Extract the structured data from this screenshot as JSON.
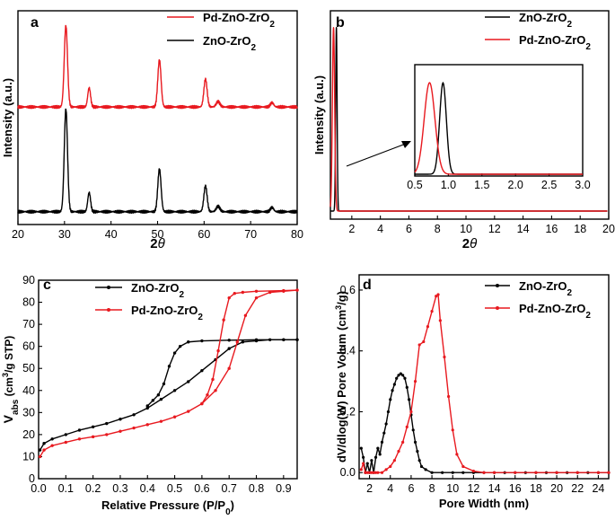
{
  "figure": {
    "title": ""
  },
  "colors": {
    "black": "#000000",
    "red": "#e8191f"
  },
  "chart_data": [
    {
      "id": "a",
      "panel_label": "a",
      "type": "line",
      "title": "",
      "xlabel": "2",
      "xlabel_italic": "θ",
      "ylabel": "Intensity (a.u.)",
      "xlim": [
        20,
        80
      ],
      "xticks": [
        "20",
        "30",
        "40",
        "50",
        "60",
        "70",
        "80"
      ],
      "yticks": [],
      "legend_position": "top-right",
      "series": [
        {
          "name": "Pd-ZnO-ZrO",
          "name_sub": "2",
          "color": "#e8191f",
          "offset": 0.54,
          "baseline": 0.01,
          "peaks": [
            [
              30.3,
              0.38,
              0.35
            ],
            [
              35.3,
              0.09,
              0.3
            ],
            [
              50.4,
              0.22,
              0.35
            ],
            [
              60.3,
              0.13,
              0.35
            ],
            [
              63.0,
              0.025,
              0.4
            ],
            [
              74.6,
              0.02,
              0.35
            ]
          ]
        },
        {
          "name": "ZnO-ZrO",
          "name_sub": "2",
          "color": "#000000",
          "offset": 0.05,
          "baseline": 0.01,
          "peaks": [
            [
              30.3,
              0.48,
              0.35
            ],
            [
              35.3,
              0.09,
              0.3
            ],
            [
              50.4,
              0.2,
              0.35
            ],
            [
              60.3,
              0.12,
              0.35
            ],
            [
              63.0,
              0.025,
              0.4
            ],
            [
              74.6,
              0.02,
              0.35
            ]
          ]
        }
      ]
    },
    {
      "id": "b",
      "panel_label": "b",
      "type": "line",
      "title": "",
      "xlabel": "2",
      "xlabel_italic": "θ",
      "ylabel": "Intensity (a.u.)",
      "xlim": [
        0.5,
        20
      ],
      "xticks": [
        "2",
        "4",
        "6",
        "8",
        "10",
        "12",
        "14",
        "16",
        "18",
        "20"
      ],
      "yticks": [],
      "legend_position": "top-right",
      "series": [
        {
          "name": "ZnO-ZrO",
          "name_sub": "2",
          "color": "#000000",
          "peak_center": 0.92,
          "peak_width": 0.05,
          "peak_height": 0.95
        },
        {
          "name": "Pd-ZnO-ZrO",
          "name_sub": "2",
          "color": "#e8191f",
          "peak_center": 0.72,
          "peak_width": 0.08,
          "peak_height": 0.95
        }
      ],
      "inset": {
        "xlim": [
          0.5,
          3.0
        ],
        "xticks": [
          "0.5",
          "1.0",
          "1.5",
          "2.0",
          "2.5",
          "3.0"
        ],
        "series": [
          {
            "color": "#000000",
            "peak_center": 0.92,
            "peak_width": 0.05,
            "peak_height": 0.75
          },
          {
            "color": "#e8191f",
            "peak_center": 0.72,
            "peak_width": 0.08,
            "peak_height": 0.75
          }
        ]
      }
    },
    {
      "id": "c",
      "panel_label": "c",
      "type": "line",
      "title": "",
      "xlabel": "Relative Pressure (P/P",
      "xlabel_sub": "0",
      "xlabel_end": ")",
      "ylabel": "V",
      "ylabel_sub": "abs",
      "ylabel_unit": " (cm",
      "ylabel_sup": "3",
      "ylabel_end": "/g STP)",
      "xlim": [
        0,
        0.95
      ],
      "ylim": [
        0,
        90
      ],
      "xticks": [
        "0.0",
        "0.1",
        "0.2",
        "0.3",
        "0.4",
        "0.5",
        "0.6",
        "0.7",
        "0.8",
        "0.9"
      ],
      "yticks": [
        "0",
        "10",
        "20",
        "30",
        "40",
        "50",
        "60",
        "70",
        "80",
        "90"
      ],
      "legend_position": "top-center",
      "series": [
        {
          "name": "ZnO-ZrO",
          "name_sub": "2",
          "color": "#000000",
          "adsorption": [
            [
              0.005,
              13
            ],
            [
              0.02,
              16
            ],
            [
              0.05,
              18
            ],
            [
              0.1,
              20
            ],
            [
              0.15,
              22
            ],
            [
              0.2,
              23.5
            ],
            [
              0.25,
              25
            ],
            [
              0.3,
              27
            ],
            [
              0.35,
              29
            ],
            [
              0.4,
              32
            ],
            [
              0.45,
              36
            ],
            [
              0.5,
              40
            ],
            [
              0.55,
              44
            ],
            [
              0.6,
              49
            ],
            [
              0.65,
              54
            ],
            [
              0.7,
              59
            ],
            [
              0.75,
              62
            ],
            [
              0.8,
              62.5
            ],
            [
              0.85,
              63
            ],
            [
              0.9,
              63
            ],
            [
              0.95,
              63
            ]
          ],
          "desorption": [
            [
              0.95,
              63
            ],
            [
              0.9,
              63
            ],
            [
              0.8,
              63
            ],
            [
              0.7,
              62.8
            ],
            [
              0.6,
              62.5
            ],
            [
              0.55,
              62
            ],
            [
              0.52,
              60
            ],
            [
              0.5,
              57
            ],
            [
              0.48,
              51
            ],
            [
              0.46,
              43
            ],
            [
              0.44,
              38
            ],
            [
              0.42,
              35.5
            ],
            [
              0.4,
              33
            ]
          ]
        },
        {
          "name": "Pd-ZnO-ZrO",
          "name_sub": "2",
          "color": "#e8191f",
          "adsorption": [
            [
              0.005,
              10
            ],
            [
              0.02,
              13
            ],
            [
              0.05,
              15
            ],
            [
              0.1,
              16.5
            ],
            [
              0.15,
              18
            ],
            [
              0.2,
              19
            ],
            [
              0.25,
              20
            ],
            [
              0.3,
              21.5
            ],
            [
              0.35,
              23
            ],
            [
              0.4,
              24.5
            ],
            [
              0.45,
              26
            ],
            [
              0.5,
              28
            ],
            [
              0.55,
              30.5
            ],
            [
              0.6,
              34
            ],
            [
              0.65,
              40
            ],
            [
              0.7,
              50
            ],
            [
              0.73,
              62
            ],
            [
              0.76,
              74
            ],
            [
              0.8,
              82
            ],
            [
              0.85,
              84.5
            ],
            [
              0.9,
              85
            ],
            [
              0.95,
              85.5
            ]
          ],
          "desorption": [
            [
              0.95,
              85.5
            ],
            [
              0.9,
              85.3
            ],
            [
              0.8,
              85
            ],
            [
              0.75,
              84.5
            ],
            [
              0.72,
              84
            ],
            [
              0.7,
              82
            ],
            [
              0.68,
              72
            ],
            [
              0.66,
              58
            ],
            [
              0.64,
              45
            ],
            [
              0.62,
              38
            ],
            [
              0.6,
              34
            ]
          ]
        }
      ]
    },
    {
      "id": "d",
      "panel_label": "d",
      "type": "line",
      "title": "",
      "xlabel": "Pore Width (nm)",
      "ylabel": "dV/dlog(W) Pore Volum (cm",
      "ylabel_sup": "3",
      "ylabel_end": "/g)",
      "xlim": [
        1,
        25
      ],
      "ylim": [
        -0.02,
        0.65
      ],
      "xticks": [
        "2",
        "4",
        "6",
        "8",
        "10",
        "12",
        "14",
        "16",
        "18",
        "20",
        "22",
        "24"
      ],
      "yticks": [
        "0.0",
        "0.2",
        "0.4",
        "0.6"
      ],
      "legend_position": "top-right",
      "series": [
        {
          "name": "ZnO-ZrO",
          "name_sub": "2",
          "color": "#000000",
          "points": [
            [
              1.2,
              0.08
            ],
            [
              1.4,
              0.05
            ],
            [
              1.6,
              0.0
            ],
            [
              1.8,
              0.03
            ],
            [
              2.0,
              0.0
            ],
            [
              2.2,
              0.04
            ],
            [
              2.4,
              0.0
            ],
            [
              2.6,
              0.05
            ],
            [
              2.8,
              0.08
            ],
            [
              3.0,
              0.06
            ],
            [
              3.2,
              0.1
            ],
            [
              3.4,
              0.13
            ],
            [
              3.6,
              0.16
            ],
            [
              3.8,
              0.2
            ],
            [
              4.0,
              0.24
            ],
            [
              4.2,
              0.27
            ],
            [
              4.4,
              0.29
            ],
            [
              4.6,
              0.31
            ],
            [
              4.8,
              0.32
            ],
            [
              5.0,
              0.325
            ],
            [
              5.2,
              0.32
            ],
            [
              5.4,
              0.31
            ],
            [
              5.6,
              0.28
            ],
            [
              5.8,
              0.24
            ],
            [
              6.0,
              0.19
            ],
            [
              6.2,
              0.14
            ],
            [
              6.4,
              0.1
            ],
            [
              6.6,
              0.07
            ],
            [
              6.8,
              0.04
            ],
            [
              7.0,
              0.02
            ],
            [
              7.4,
              0.01
            ],
            [
              8,
              0.0
            ],
            [
              9,
              0.0
            ],
            [
              10,
              0.0
            ],
            [
              11,
              0.0
            ],
            [
              12,
              0.0
            ],
            [
              13,
              0.0
            ],
            [
              14,
              0.0
            ],
            [
              15,
              0.0
            ],
            [
              16,
              0.0
            ],
            [
              17,
              0.0
            ],
            [
              18,
              0.0
            ],
            [
              19,
              0.0
            ],
            [
              20,
              0.0
            ],
            [
              21,
              0.0
            ],
            [
              22,
              0.0
            ],
            [
              23,
              0.0
            ],
            [
              24,
              0.0
            ],
            [
              25,
              0.0
            ]
          ]
        },
        {
          "name": "Pd-ZnO-ZrO",
          "name_sub": "2",
          "color": "#e8191f",
          "points": [
            [
              1.2,
              0.01
            ],
            [
              1.4,
              0.03
            ],
            [
              1.6,
              0.0
            ],
            [
              1.8,
              0.0
            ],
            [
              2.0,
              0.0
            ],
            [
              2.2,
              0.0
            ],
            [
              2.4,
              0.0
            ],
            [
              2.6,
              0.0
            ],
            [
              2.8,
              0.0
            ],
            [
              3.2,
              0.0
            ],
            [
              3.6,
              0.01
            ],
            [
              4.0,
              0.02
            ],
            [
              4.4,
              0.04
            ],
            [
              4.8,
              0.07
            ],
            [
              5.2,
              0.1
            ],
            [
              5.6,
              0.15
            ],
            [
              6.0,
              0.2
            ],
            [
              6.4,
              0.3
            ],
            [
              6.8,
              0.42
            ],
            [
              7.2,
              0.43
            ],
            [
              7.6,
              0.48
            ],
            [
              8.0,
              0.53
            ],
            [
              8.4,
              0.58
            ],
            [
              8.6,
              0.585
            ],
            [
              8.8,
              0.5
            ],
            [
              9.2,
              0.38
            ],
            [
              9.6,
              0.25
            ],
            [
              10.0,
              0.14
            ],
            [
              10.4,
              0.06
            ],
            [
              11.0,
              0.02
            ],
            [
              12.0,
              0.005
            ],
            [
              13.0,
              0.0
            ],
            [
              14,
              0.0
            ],
            [
              16,
              0.0
            ],
            [
              18,
              0.0
            ],
            [
              20,
              0.0
            ],
            [
              22,
              0.0
            ],
            [
              24,
              0.0
            ],
            [
              25,
              0.0
            ]
          ]
        }
      ]
    }
  ]
}
